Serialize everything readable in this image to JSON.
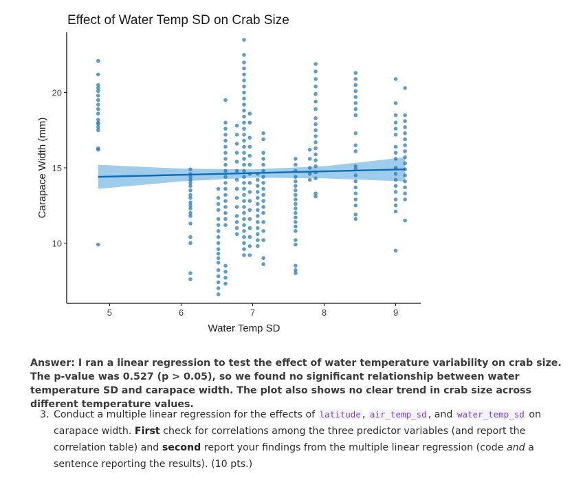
{
  "chart_data": {
    "type": "scatter",
    "title": "Effect of Water Temp SD on Crab Size",
    "xlabel": "Water Temp SD",
    "ylabel": "Carapace Width (mm)",
    "xlim": [
      4.4,
      9.35
    ],
    "ylim": [
      6.0,
      24.0
    ],
    "xticks": [
      5,
      6,
      7,
      8,
      9
    ],
    "yticks": [
      10,
      15,
      20
    ],
    "grid": false,
    "point_color": "#1f78b4",
    "band_color": "#8ec3e6",
    "line_color": "#0b6db5",
    "fit_line": {
      "x": [
        4.84,
        9.13
      ],
      "y": [
        14.4,
        14.9
      ]
    },
    "band": {
      "x": [
        4.84,
        6.0,
        7.0,
        8.0,
        9.13
      ],
      "lower": [
        13.6,
        14.1,
        14.35,
        14.3,
        14.1
      ],
      "upper": [
        15.2,
        14.95,
        14.9,
        15.1,
        15.7
      ]
    },
    "series": [
      {
        "x": 4.84,
        "y": [
          22.1,
          21.2,
          20.5,
          20.3,
          20.1,
          19.8,
          19.5,
          19.2,
          18.9,
          18.6,
          18.2,
          18.0,
          17.9,
          17.7,
          17.5,
          16.3,
          16.2,
          9.9
        ]
      },
      {
        "x": 6.13,
        "y": [
          14.9,
          14.6,
          14.4,
          14.2,
          14.0,
          13.8,
          13.5,
          13.2,
          13.0,
          12.7,
          12.5,
          12.3,
          12.0,
          11.8,
          11.3,
          10.4,
          10.0,
          8.0,
          7.6
        ]
      },
      {
        "x": 6.52,
        "y": [
          13.6,
          13.0,
          12.6,
          12.2,
          11.6,
          11.2,
          10.8,
          10.4,
          10.0,
          9.6,
          9.3,
          9.0,
          8.7,
          8.2,
          7.8,
          7.4,
          7.0,
          6.6
        ]
      },
      {
        "x": 6.62,
        "y": [
          19.5,
          18.0,
          17.6,
          17.2,
          16.8,
          16.4,
          16.0,
          15.6,
          15.2,
          14.8,
          14.4,
          14.0,
          13.6,
          13.2,
          12.8,
          12.4,
          12.0,
          11.6,
          11.2,
          8.5,
          8.1,
          7.7,
          7.3
        ]
      },
      {
        "x": 6.78,
        "y": [
          17.8,
          17.2,
          16.6,
          16.0,
          15.4,
          14.8,
          14.2,
          13.6,
          13.0,
          12.4,
          11.8,
          11.4,
          11.0,
          10.6
        ]
      },
      {
        "x": 6.88,
        "y": [
          23.5,
          22.5,
          22.0,
          21.6,
          21.2,
          20.8,
          20.4,
          20.0,
          19.6,
          19.2,
          18.8,
          18.4,
          18.0,
          17.6,
          17.2,
          16.8,
          16.4,
          16.0,
          15.6,
          15.2,
          14.8,
          14.4,
          14.0,
          13.6,
          13.2,
          12.8,
          12.4,
          12.0,
          11.6,
          11.2,
          10.8,
          10.4,
          10.0,
          9.6,
          9.2
        ]
      },
      {
        "x": 6.96,
        "y": [
          18.6,
          18.0,
          17.0,
          16.4,
          15.8,
          15.2,
          14.6,
          14.0,
          13.4,
          12.8,
          12.2,
          11.6,
          11.0,
          10.4,
          9.8,
          9.2
        ]
      },
      {
        "x": 7.07,
        "y": [
          14.6,
          14.2,
          13.8,
          13.4,
          13.0,
          12.6,
          12.2,
          11.8,
          11.4,
          11.0,
          10.6,
          10.2,
          9.8
        ]
      },
      {
        "x": 7.15,
        "y": [
          17.3,
          16.9,
          16.0,
          15.6,
          15.2,
          14.8,
          14.4,
          14.0,
          13.6,
          13.2,
          12.8,
          12.4,
          12.0,
          11.4,
          10.8,
          10.2,
          9.0,
          8.6
        ]
      },
      {
        "x": 7.6,
        "y": [
          15.6,
          15.2,
          14.8,
          14.4,
          14.1,
          13.8,
          13.5,
          13.2,
          12.9,
          12.6,
          12.3,
          12.0,
          11.7,
          11.4,
          11.1,
          10.8,
          10.2,
          9.9,
          8.5,
          8.2,
          8.0
        ]
      },
      {
        "x": 7.8,
        "y": [
          16.2,
          15.6,
          15.0,
          14.6,
          14.2
        ]
      },
      {
        "x": 7.88,
        "y": [
          21.9,
          21.4,
          20.9,
          20.4,
          19.9,
          19.4,
          18.9,
          18.3,
          17.9,
          17.5,
          17.1,
          16.7,
          16.3,
          15.9,
          15.5,
          15.1,
          14.7,
          14.3,
          13.3,
          13.1
        ]
      },
      {
        "x": 8.44,
        "y": [
          21.3,
          20.9,
          20.5,
          20.1,
          19.7,
          19.3,
          18.9,
          18.5,
          17.3,
          16.5,
          16.1,
          15.1,
          14.9,
          14.5,
          14.1,
          13.7,
          13.3,
          12.9,
          12.5,
          11.9,
          11.6
        ]
      },
      {
        "x": 9.0,
        "y": [
          20.9,
          19.3,
          18.5,
          18.0,
          17.6,
          17.2,
          16.4,
          16.0,
          15.6,
          15.0,
          14.6,
          14.2,
          13.8,
          13.4,
          12.9,
          12.5,
          12.1,
          9.5
        ]
      },
      {
        "x": 9.13,
        "y": [
          20.3,
          18.5,
          18.1,
          17.7,
          17.3,
          16.9,
          16.5,
          16.1,
          15.7,
          15.3,
          14.9,
          14.5,
          14.1,
          13.7,
          13.3,
          12.9,
          11.5
        ]
      }
    ]
  },
  "answer": {
    "text": "Answer: I ran a linear regression to test the effect of water temperature variability on crab size. The p-value was 0.527 (p > 0.05), so we found no significant relationship between water temperature SD and carapace width. The plot also shows no clear trend in crab size across different temperature values."
  },
  "question": {
    "number": "3.",
    "part1": "Conduct a multiple linear regression for the effects of ",
    "code1": "latitude",
    "sep1": ", ",
    "code2": "air_temp_sd",
    "sep2": ", and ",
    "code3": "water_temp_sd",
    "part2": " on carapace width. ",
    "bold1": "First",
    "part3": " check for correlations among the three predictor variables (and report the correlation table) and ",
    "bold2": "second",
    "part4": " report your findings from the multiple linear regression (code ",
    "em1": "and",
    "part5": " a sentence reporting the results). (10 pts.)"
  }
}
